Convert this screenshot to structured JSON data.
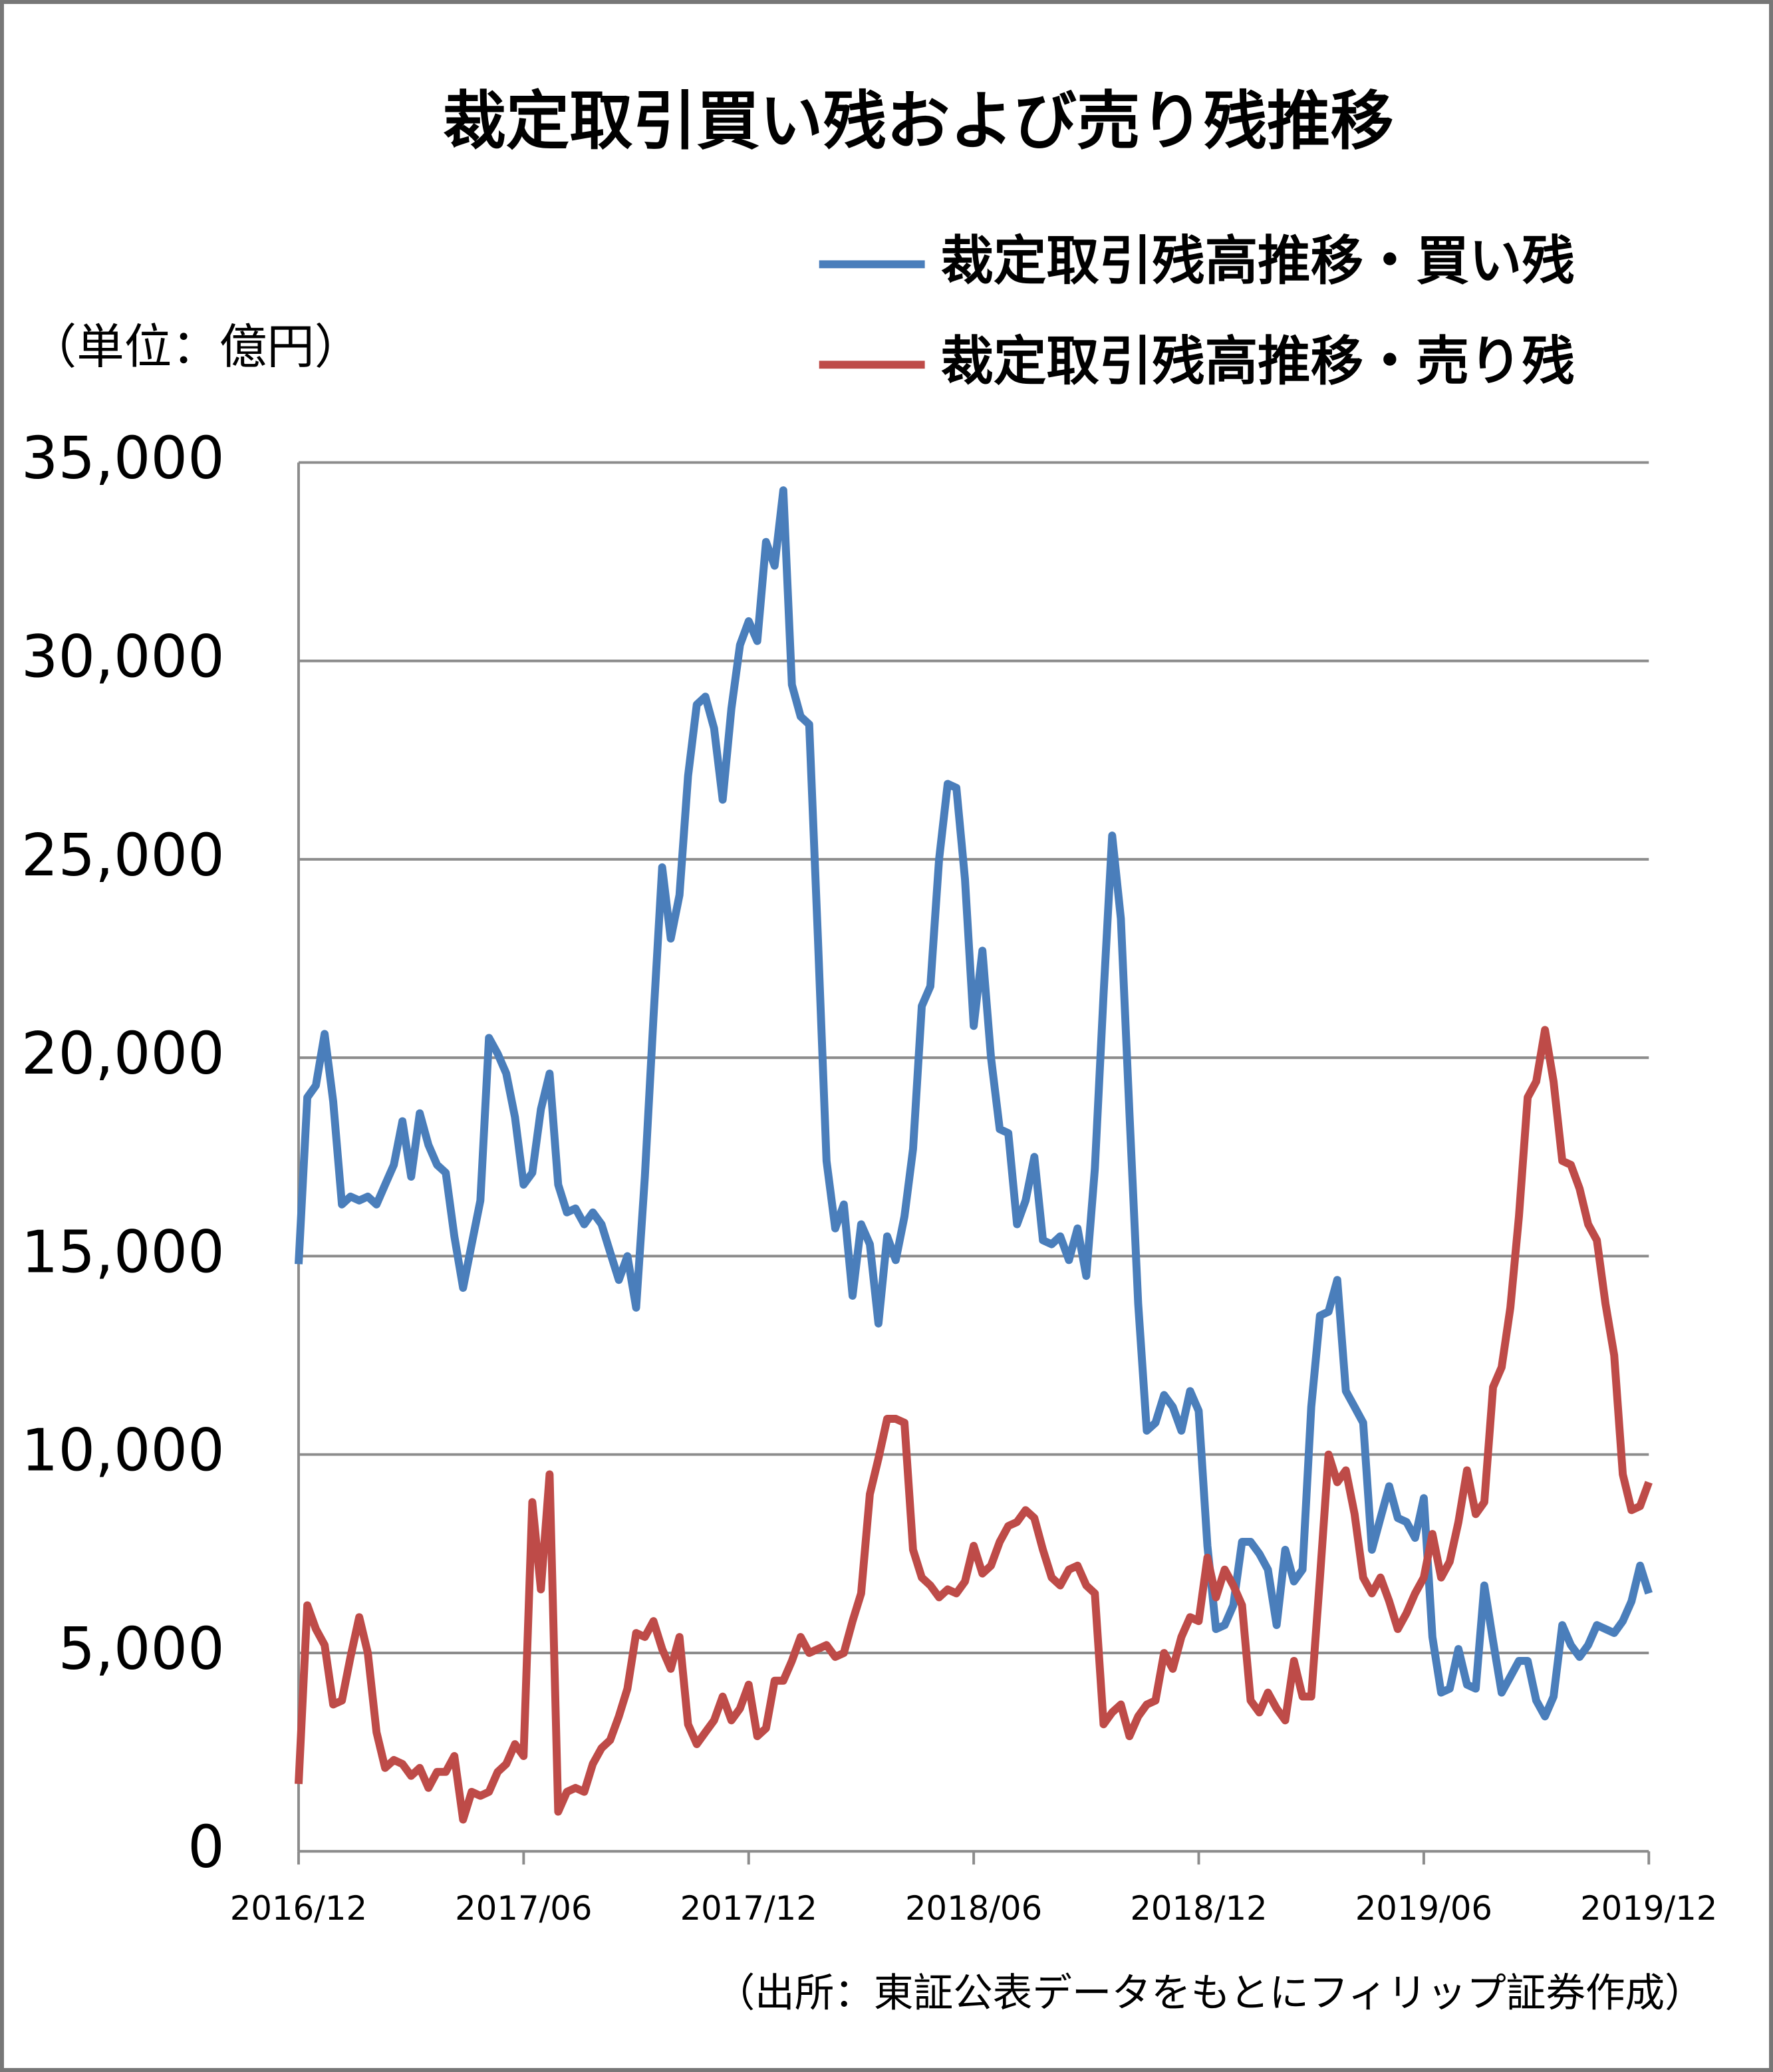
{
  "chart_data": {
    "type": "line",
    "title": "裁定取引買い残および売り残推移",
    "unit_label": "（単位：億円）",
    "source": "（出所：東証公表データをもとにフィリップ証券作成）",
    "categories": [
      "2016/12",
      null,
      null,
      null,
      null,
      null,
      null,
      null,
      null,
      null,
      null,
      null,
      null,
      null,
      null,
      null,
      null,
      null,
      null,
      null,
      null,
      null,
      null,
      null,
      null,
      null,
      "2017/06",
      null,
      null,
      null,
      null,
      null,
      null,
      null,
      null,
      null,
      null,
      null,
      null,
      null,
      null,
      null,
      null,
      null,
      null,
      null,
      null,
      null,
      null,
      null,
      null,
      null,
      "2017/12",
      null,
      null,
      null,
      null,
      null,
      null,
      null,
      null,
      null,
      null,
      null,
      null,
      null,
      null,
      null,
      null,
      null,
      null,
      null,
      null,
      null,
      null,
      null,
      null,
      null,
      "2018/06",
      null,
      null,
      null,
      null,
      null,
      null,
      null,
      null,
      null,
      null,
      null,
      null,
      null,
      null,
      null,
      null,
      null,
      null,
      null,
      null,
      null,
      null,
      null,
      null,
      null,
      "2018/12",
      null,
      null,
      null,
      null,
      null,
      null,
      null,
      null,
      null,
      null,
      null,
      null,
      null,
      null,
      null,
      null,
      null,
      null,
      null,
      null,
      null,
      null,
      null,
      null,
      null,
      "2019/06",
      null,
      null,
      null,
      null,
      null,
      null,
      null,
      null,
      null,
      null,
      null,
      null,
      null,
      null,
      null,
      null,
      null,
      null,
      null,
      null,
      null,
      null,
      null,
      null,
      null,
      "2019/12"
    ],
    "series": [
      {
        "name": "裁定取引残高推移・買い残",
        "color": "#4a7ebb",
        "values": [
          14800,
          19000,
          19300,
          20600,
          18900,
          16300,
          16500,
          16400,
          16500,
          16300,
          16800,
          17300,
          18400,
          17000,
          18600,
          17800,
          17300,
          17100,
          15500,
          14200,
          15300,
          16400,
          20500,
          20100,
          19600,
          18500,
          16800,
          17100,
          18700,
          19600,
          16800,
          16100,
          16200,
          15800,
          16100,
          15800,
          15100,
          14400,
          15000,
          13700,
          17000,
          21000,
          24800,
          23000,
          24100,
          27100,
          28900,
          29100,
          28300,
          26500,
          28800,
          30400,
          31000,
          30500,
          33000,
          32400,
          34300,
          29400,
          28600,
          28400,
          23000,
          17400,
          15700,
          16300,
          14000,
          15800,
          15300,
          13300,
          15500,
          14900,
          16000,
          17700,
          21300,
          21800,
          25000,
          26900,
          26800,
          24500,
          20800,
          22700,
          20000,
          18200,
          18100,
          15800,
          16400,
          17500,
          15400,
          15300,
          15500,
          14900,
          15700,
          14500,
          17200,
          21600,
          25600,
          23500,
          18600,
          13800,
          10600,
          10800,
          11500,
          11200,
          10600,
          11600,
          11100,
          7700,
          5600,
          5700,
          6200,
          7800,
          7800,
          7500,
          7100,
          5700,
          7600,
          6800,
          7100,
          11200,
          13500,
          13600,
          14400,
          11600,
          11200,
          10800,
          7600,
          8400,
          9200,
          8400,
          8300,
          7900,
          8900,
          5400,
          4000,
          4100,
          5100,
          4200,
          4100,
          6700,
          5300,
          4000,
          4400,
          4800,
          4800,
          3800,
          3400,
          3900,
          5700,
          5200,
          4900,
          5200,
          5700,
          5600,
          5500,
          5800,
          6300,
          7200,
          6500
        ]
      },
      {
        "name": "裁定取引残高推移・売り残",
        "color": "#be4b48",
        "values": [
          1700,
          6200,
          5600,
          5200,
          3700,
          3800,
          4900,
          5900,
          5000,
          3000,
          2100,
          2300,
          2200,
          1900,
          2100,
          1600,
          2000,
          2000,
          2400,
          800,
          1500,
          1400,
          1500,
          2000,
          2200,
          2700,
          2400,
          8800,
          6600,
          9500,
          1000,
          1500,
          1600,
          1500,
          2200,
          2600,
          2800,
          3400,
          4100,
          5500,
          5400,
          5800,
          5100,
          4600,
          5400,
          3200,
          2700,
          3000,
          3300,
          3900,
          3300,
          3600,
          4200,
          2900,
          3100,
          4300,
          4300,
          4800,
          5400,
          5000,
          5100,
          5200,
          4900,
          5000,
          5800,
          6500,
          9000,
          9900,
          10900,
          10900,
          10800,
          7600,
          6900,
          6700,
          6400,
          6600,
          6500,
          6800,
          7700,
          7000,
          7200,
          7800,
          8200,
          8300,
          8600,
          8400,
          7600,
          6900,
          6700,
          7100,
          7200,
          6700,
          6500,
          3200,
          3500,
          3700,
          2900,
          3400,
          3700,
          3800,
          5000,
          4600,
          5400,
          5900,
          5800,
          7400,
          6400,
          7100,
          6700,
          6200,
          3800,
          3500,
          4000,
          3600,
          3300,
          4800,
          3900,
          3900,
          6900,
          10000,
          9300,
          9600,
          8500,
          6900,
          6500,
          6900,
          6300,
          5600,
          6000,
          6500,
          6900,
          8000,
          6900,
          7300,
          8300,
          9600,
          8500,
          8800,
          11700,
          12200,
          13700,
          16000,
          19000,
          19400,
          20700,
          19400,
          17400,
          17300,
          16700,
          15800,
          15400,
          13800,
          12500,
          9500,
          8600,
          8700,
          9300
        ]
      }
    ],
    "ylim": [
      0,
      35000
    ],
    "yticks": [
      0,
      {
        "value": 5000,
        "label": "5,000"
      },
      {
        "value": 10000,
        "label": "10,000"
      },
      {
        "value": 15000,
        "label": "15,000"
      },
      {
        "value": 20000,
        "label": "20,000"
      },
      {
        "value": 25000,
        "label": "25,000"
      },
      {
        "value": 30000,
        "label": "30,000"
      },
      {
        "value": 35000,
        "label": "35,000"
      }
    ],
    "grid": true,
    "legend": "top-right"
  }
}
